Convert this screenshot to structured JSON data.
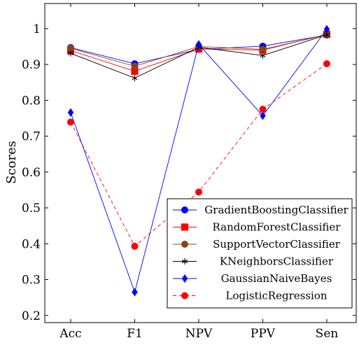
{
  "chart_data": {
    "type": "line",
    "title": "",
    "xlabel": "",
    "ylabel": "Scores",
    "categories": [
      "Acc",
      "F1",
      "NPV",
      "PPV",
      "Sen"
    ],
    "ylim": [
      0.18,
      1.07
    ],
    "yticks": [
      0.2,
      0.3,
      0.4,
      0.5,
      0.6,
      0.7,
      0.8,
      0.9,
      1
    ],
    "ytick_labels": [
      "0.2",
      "0.3",
      "0.4",
      "0.5",
      "0.6",
      "0.7",
      "0.8",
      "0.9",
      "1"
    ],
    "grid": false,
    "legend_position": "bottom-right",
    "series": [
      {
        "name": "GradientBoostingClassifier",
        "values": [
          0.947,
          0.902,
          0.942,
          0.951,
          0.982
        ],
        "color": "#0000ff",
        "marker": "circle",
        "line": "solid"
      },
      {
        "name": "RandomForestClassifier",
        "values": [
          0.939,
          0.881,
          0.943,
          0.94,
          0.984
        ],
        "color": "#ff0000",
        "marker": "square",
        "line": "solid"
      },
      {
        "name": "SupportVectorClassifier",
        "values": [
          0.945,
          0.895,
          0.95,
          0.942,
          0.983
        ],
        "color": "#8b4513",
        "marker": "circle",
        "line": "solid"
      },
      {
        "name": "KNeighborsClassifier",
        "values": [
          0.931,
          0.862,
          0.948,
          0.925,
          0.983
        ],
        "color": "#000000",
        "marker": "star",
        "line": "solid"
      },
      {
        "name": "GaussianNaiveBayes",
        "values": [
          0.766,
          0.265,
          0.956,
          0.757,
          0.998
        ],
        "color": "#0000ff",
        "marker": "diamond",
        "line": "solid"
      },
      {
        "name": "LogisticRegression",
        "values": [
          0.739,
          0.393,
          0.544,
          0.775,
          0.902
        ],
        "color": "#ff0000",
        "marker": "circle",
        "line": "dashed"
      }
    ]
  }
}
